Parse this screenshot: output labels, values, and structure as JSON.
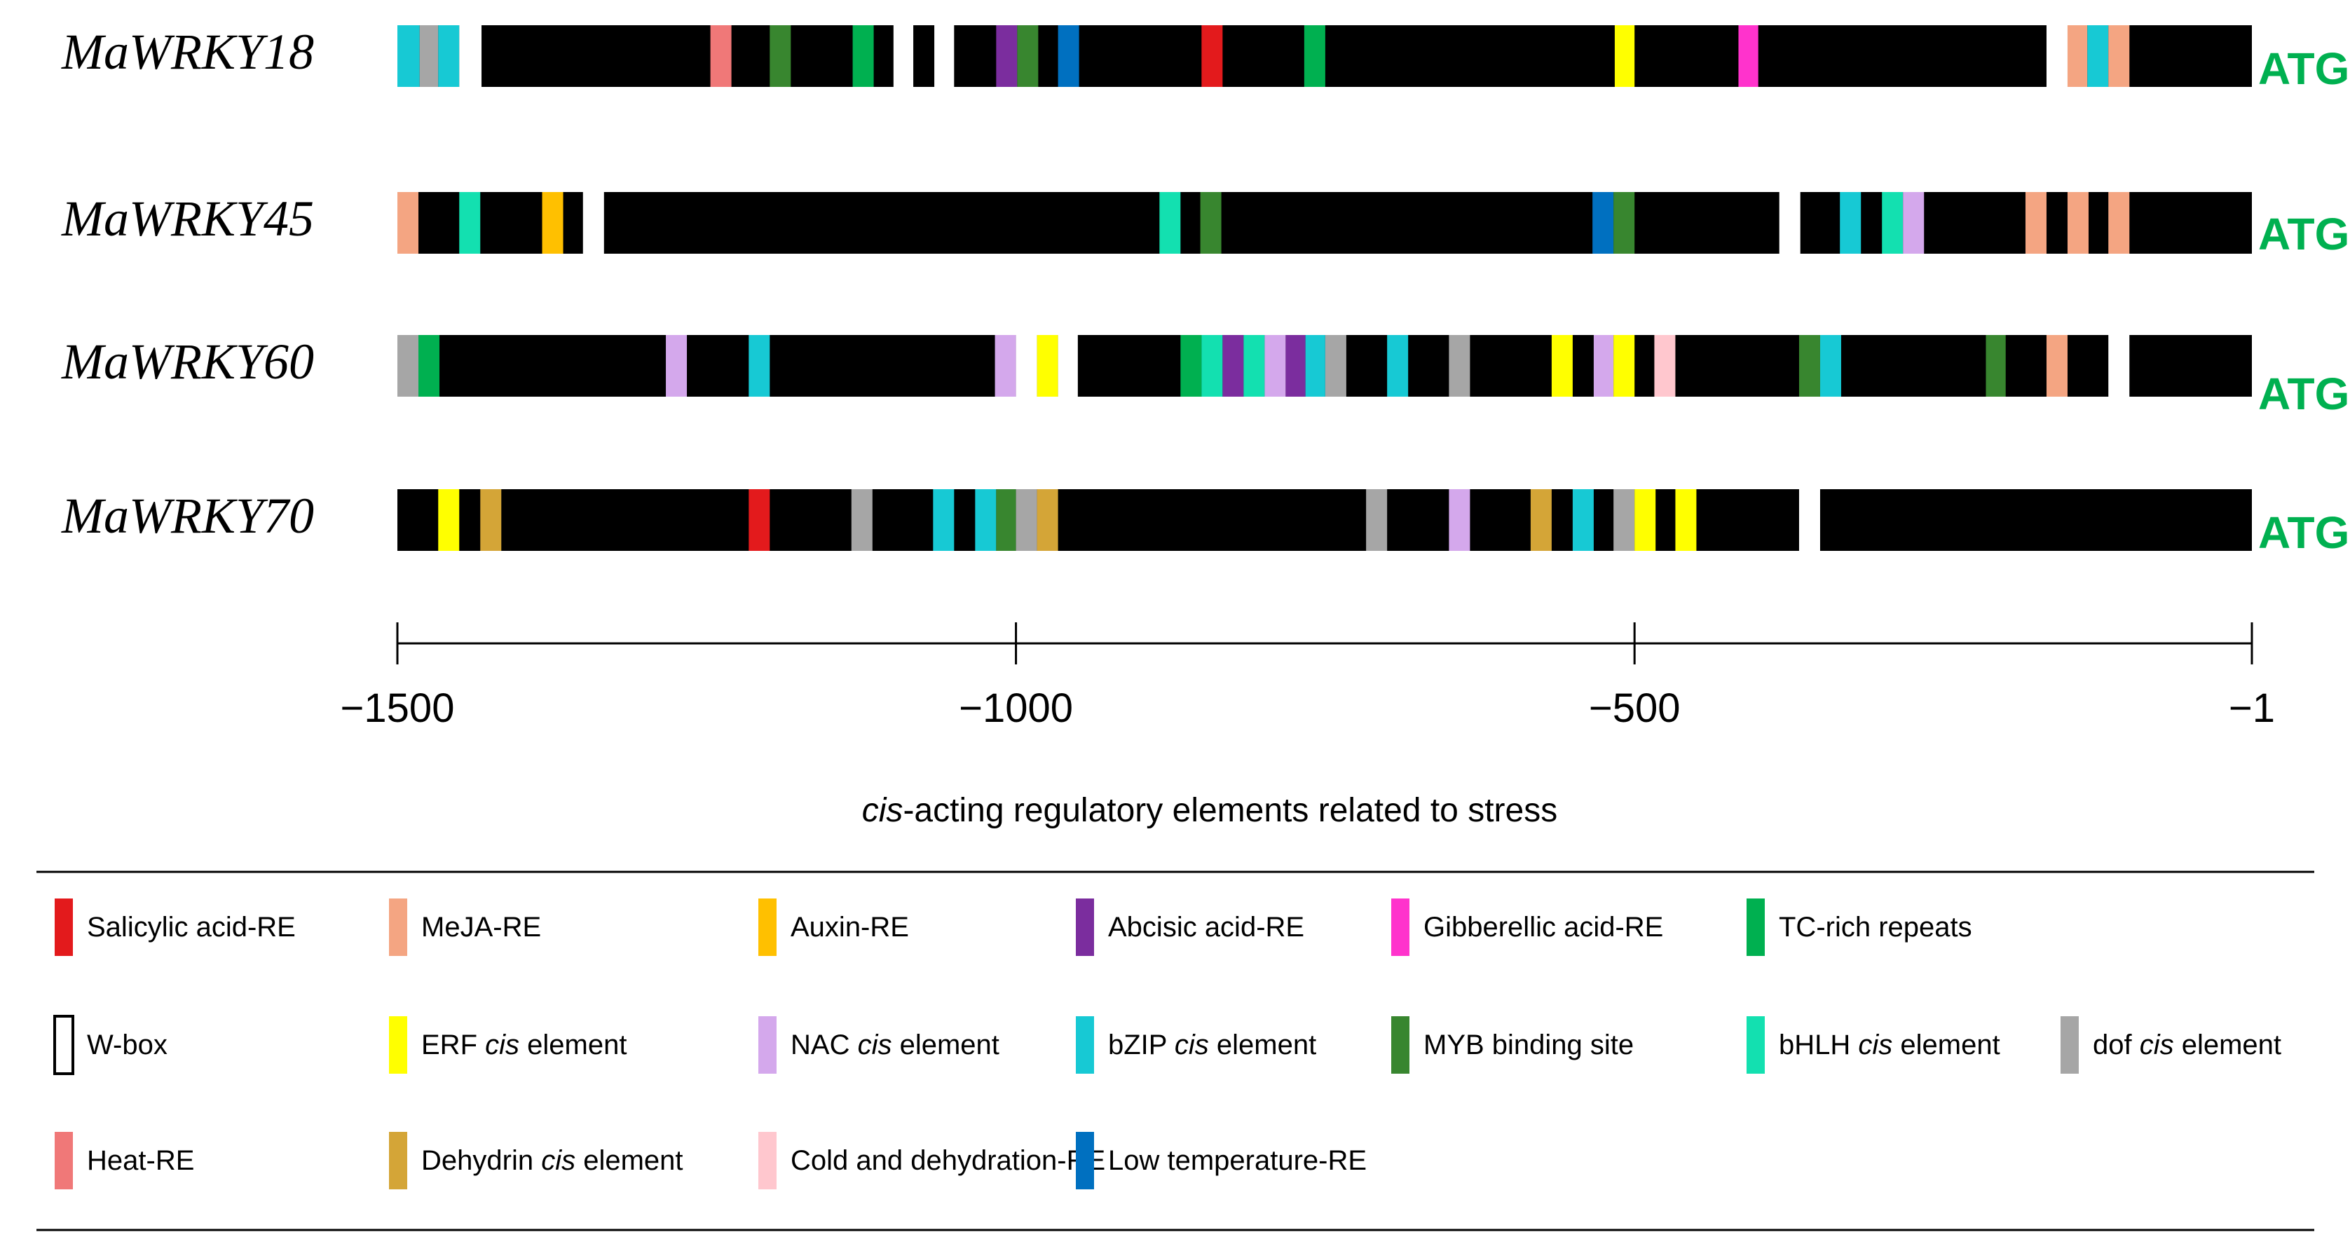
{
  "chart_data": {
    "type": "promoter-map",
    "x_range": [
      -1500,
      -1
    ],
    "axis_ticks": [
      {
        "value": -1500,
        "label": "−1500"
      },
      {
        "value": -1000,
        "label": "−1000"
      },
      {
        "value": -500,
        "label": "−500"
      },
      {
        "value": -1,
        "label": "−1"
      }
    ],
    "caption_italic": "cis",
    "caption_rest": "-acting regulatory elements related to stress",
    "end_label": "ATG",
    "elements": {
      "SA": {
        "label": "Salicylic acid-RE",
        "color": "#e31a1c"
      },
      "MeJA": {
        "label": "MeJA-RE",
        "color": "#f4a582"
      },
      "AUX": {
        "label": "Auxin-RE",
        "color": "#ffc000"
      },
      "ABA": {
        "label": "Abcisic acid-RE",
        "color": "#7b2d9e"
      },
      "GA": {
        "label": "Gibberellic acid-RE",
        "color": "#ff33cc"
      },
      "TC": {
        "label": "TC-rich repeats",
        "color": "#00b050"
      },
      "WBOX": {
        "label": "W-box",
        "color": "#ffffff"
      },
      "ERF": {
        "label": "ERF cis element",
        "color": "#ffff00"
      },
      "NAC": {
        "label": "NAC cis element",
        "color": "#d4a8ec"
      },
      "BZIP": {
        "label": "bZIP cis element",
        "color": "#17c9d4"
      },
      "MYB": {
        "label": "MYB binding site",
        "color": "#38862f"
      },
      "BHLH": {
        "label": "bHLH cis element",
        "color": "#13e0b0"
      },
      "DOF": {
        "label": "dof cis element",
        "color": "#a6a6a6"
      },
      "HEAT": {
        "label": "Heat-RE",
        "color": "#f07878"
      },
      "DHN": {
        "label": "Dehydrin cis element",
        "color": "#d4a537"
      },
      "CDRE": {
        "label": "Cold and dehydration-RE",
        "color": "#ffc7ce"
      },
      "LTR": {
        "label": "Low temperature-RE",
        "color": "#0070c0"
      }
    },
    "legend": [
      [
        "SA",
        "MeJA",
        "AUX",
        "ABA",
        "GA",
        "TC"
      ],
      [
        "WBOX",
        "ERF",
        "NAC",
        "BZIP",
        "MYB",
        "BHLH",
        "DOF"
      ],
      [
        "HEAT",
        "DHN",
        "CDRE",
        "LTR"
      ]
    ],
    "genes": [
      {
        "name": "MaWRKY18",
        "elements": [
          {
            "type": "BZIP",
            "start": -1500,
            "end": -1482
          },
          {
            "type": "DOF",
            "start": -1482,
            "end": -1467
          },
          {
            "type": "BZIP",
            "start": -1467,
            "end": -1450
          },
          {
            "type": "WBOX",
            "start": -1450,
            "end": -1432
          },
          {
            "type": "HEAT",
            "start": -1247,
            "end": -1230
          },
          {
            "type": "MYB",
            "start": -1199,
            "end": -1182
          },
          {
            "type": "TC",
            "start": -1132,
            "end": -1115
          },
          {
            "type": "WBOX",
            "start": -1099,
            "end": -1083
          },
          {
            "type": "WBOX",
            "start": -1066,
            "end": -1050
          },
          {
            "type": "ABA",
            "start": -1016,
            "end": -999
          },
          {
            "type": "MYB",
            "start": -999,
            "end": -982
          },
          {
            "type": "LTR",
            "start": -966,
            "end": -949
          },
          {
            "type": "SA",
            "start": -850,
            "end": -833
          },
          {
            "type": "TC",
            "start": -767,
            "end": -750
          },
          {
            "type": "ERF",
            "start": -516,
            "end": -500
          },
          {
            "type": "GA",
            "start": -416,
            "end": -400
          },
          {
            "type": "WBOX",
            "start": -167,
            "end": -150
          },
          {
            "type": "MeJA",
            "start": -150,
            "end": -134
          },
          {
            "type": "BZIP",
            "start": -134,
            "end": -117
          },
          {
            "type": "MeJA",
            "start": -117,
            "end": -100
          }
        ]
      },
      {
        "name": "MaWRKY45",
        "elements": [
          {
            "type": "MeJA",
            "start": -1500,
            "end": -1483
          },
          {
            "type": "BHLH",
            "start": -1450,
            "end": -1433
          },
          {
            "type": "AUX",
            "start": -1383,
            "end": -1366
          },
          {
            "type": "WBOX",
            "start": -1350,
            "end": -1333
          },
          {
            "type": "BHLH",
            "start": -884,
            "end": -867
          },
          {
            "type": "MYB",
            "start": -851,
            "end": -834
          },
          {
            "type": "LTR",
            "start": -534,
            "end": -517
          },
          {
            "type": "MYB",
            "start": -517,
            "end": -500
          },
          {
            "type": "WBOX",
            "start": -383,
            "end": -366
          },
          {
            "type": "BZIP",
            "start": -334,
            "end": -317
          },
          {
            "type": "BHLH",
            "start": -300,
            "end": -283
          },
          {
            "type": "NAC",
            "start": -283,
            "end": -266
          },
          {
            "type": "MeJA",
            "start": -184,
            "end": -167
          },
          {
            "type": "MeJA",
            "start": -150,
            "end": -133
          },
          {
            "type": "MeJA",
            "start": -117,
            "end": -100
          }
        ]
      },
      {
        "name": "MaWRKY60",
        "elements": [
          {
            "type": "DOF",
            "start": -1500,
            "end": -1483
          },
          {
            "type": "TC",
            "start": -1483,
            "end": -1466
          },
          {
            "type": "NAC",
            "start": -1283,
            "end": -1266
          },
          {
            "type": "BZIP",
            "start": -1216,
            "end": -1199
          },
          {
            "type": "NAC",
            "start": -1017,
            "end": -1000
          },
          {
            "type": "WBOX",
            "start": -1000,
            "end": -983
          },
          {
            "type": "ERF",
            "start": -983,
            "end": -966
          },
          {
            "type": "WBOX",
            "start": -966,
            "end": -950
          },
          {
            "type": "TC",
            "start": -867,
            "end": -850
          },
          {
            "type": "BHLH",
            "start": -850,
            "end": -833
          },
          {
            "type": "ABA",
            "start": -833,
            "end": -816
          },
          {
            "type": "BHLH",
            "start": -816,
            "end": -799
          },
          {
            "type": "NAC",
            "start": -799,
            "end": -782
          },
          {
            "type": "ABA",
            "start": -782,
            "end": -766
          },
          {
            "type": "BZIP",
            "start": -766,
            "end": -750
          },
          {
            "type": "DOF",
            "start": -750,
            "end": -733
          },
          {
            "type": "BZIP",
            "start": -700,
            "end": -683
          },
          {
            "type": "DOF",
            "start": -650,
            "end": -633
          },
          {
            "type": "ERF",
            "start": -567,
            "end": -550
          },
          {
            "type": "NAC",
            "start": -533,
            "end": -517
          },
          {
            "type": "ERF",
            "start": -517,
            "end": -500
          },
          {
            "type": "CDRE",
            "start": -484,
            "end": -467
          },
          {
            "type": "MYB",
            "start": -367,
            "end": -350
          },
          {
            "type": "BZIP",
            "start": -350,
            "end": -333
          },
          {
            "type": "MYB",
            "start": -216,
            "end": -200
          },
          {
            "type": "MeJA",
            "start": -167,
            "end": -150
          },
          {
            "type": "WBOX",
            "start": -117,
            "end": -100
          }
        ]
      },
      {
        "name": "MaWRKY70",
        "elements": [
          {
            "type": "ERF",
            "start": -1467,
            "end": -1450
          },
          {
            "type": "DHN",
            "start": -1433,
            "end": -1416
          },
          {
            "type": "SA",
            "start": -1216,
            "end": -1199
          },
          {
            "type": "DOF",
            "start": -1133,
            "end": -1116
          },
          {
            "type": "BZIP",
            "start": -1067,
            "end": -1050
          },
          {
            "type": "BZIP",
            "start": -1033,
            "end": -1016
          },
          {
            "type": "MYB",
            "start": -1016,
            "end": -1000
          },
          {
            "type": "DOF",
            "start": -1000,
            "end": -983
          },
          {
            "type": "DHN",
            "start": -983,
            "end": -966
          },
          {
            "type": "DOF",
            "start": -717,
            "end": -700
          },
          {
            "type": "NAC",
            "start": -650,
            "end": -633
          },
          {
            "type": "DHN",
            "start": -584,
            "end": -567
          },
          {
            "type": "BZIP",
            "start": -550,
            "end": -533
          },
          {
            "type": "DOF",
            "start": -517,
            "end": -500
          },
          {
            "type": "ERF",
            "start": -500,
            "end": -483
          },
          {
            "type": "ERF",
            "start": -467,
            "end": -450
          },
          {
            "type": "WBOX",
            "start": -367,
            "end": -350
          }
        ]
      }
    ]
  }
}
